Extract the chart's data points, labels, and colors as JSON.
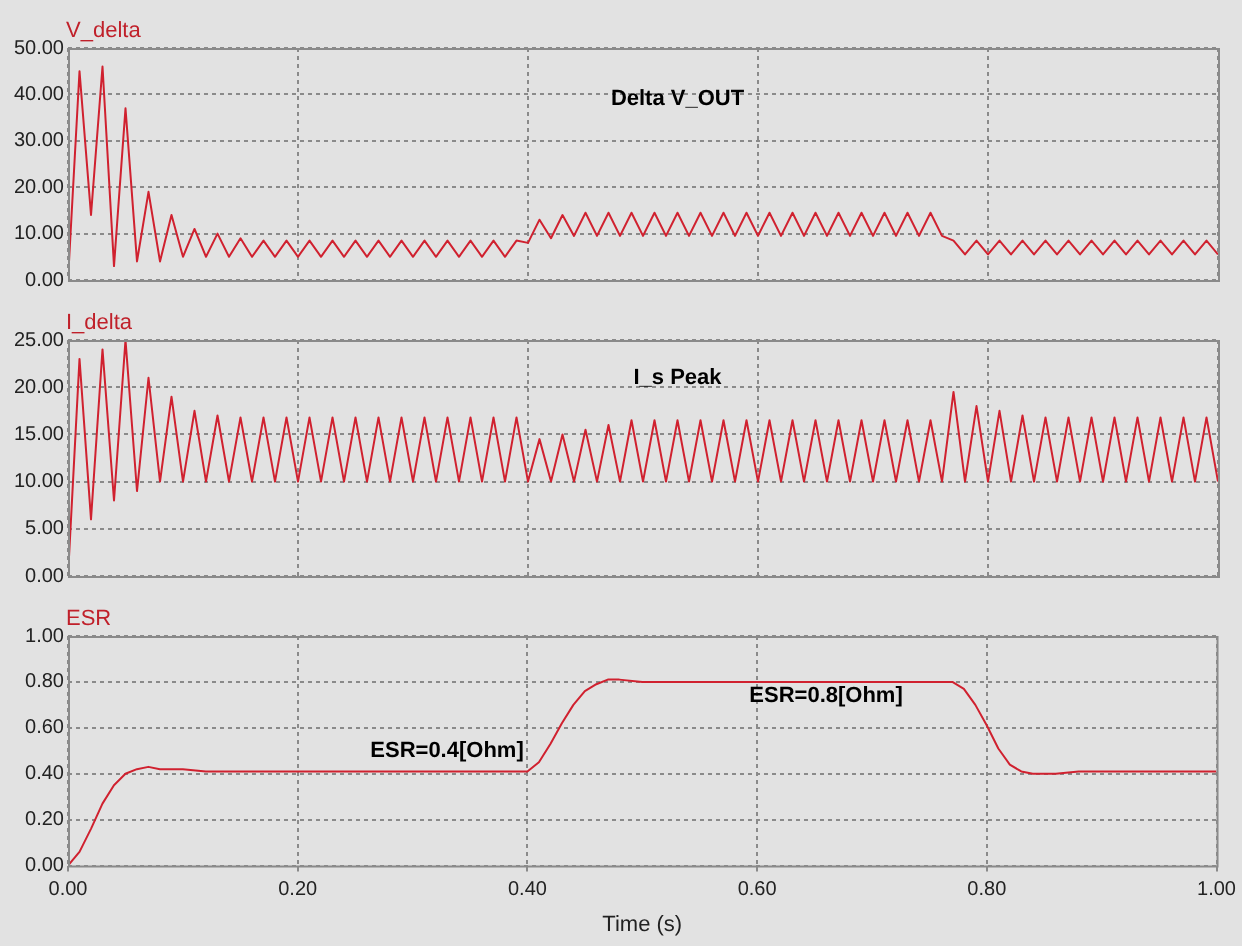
{
  "chart_data": [
    {
      "type": "line",
      "ylabel": "V_delta",
      "annotations": [
        "Delta V_OUT"
      ],
      "grid": true,
      "marker": "none",
      "tick_labels": "y",
      "xlim": [
        0,
        1
      ],
      "xticks": [
        0,
        0.2,
        0.4,
        0.6,
        0.8,
        1
      ],
      "ylim": [
        0,
        50
      ],
      "yticks": [
        {
          "value": 0,
          "label": "0.00"
        },
        {
          "value": 10,
          "label": "10.00"
        },
        {
          "value": 20,
          "label": "20.00"
        },
        {
          "value": 30,
          "label": "30.00"
        },
        {
          "value": 40,
          "label": "40.00"
        },
        {
          "value": 50,
          "label": "50.00"
        }
      ],
      "x": [
        0,
        0.01,
        0.02,
        0.03,
        0.04,
        0.05,
        0.06,
        0.07,
        0.08,
        0.09,
        0.1,
        0.11,
        0.12,
        0.13,
        0.14,
        0.15,
        0.16,
        0.17,
        0.18,
        0.19,
        0.2,
        0.21,
        0.22,
        0.23,
        0.24,
        0.25,
        0.26,
        0.27,
        0.28,
        0.29,
        0.3,
        0.31,
        0.32,
        0.33,
        0.34,
        0.35,
        0.36,
        0.37,
        0.38,
        0.39,
        0.4,
        0.41,
        0.42,
        0.43,
        0.44,
        0.45,
        0.46,
        0.47,
        0.48,
        0.49,
        0.5,
        0.51,
        0.52,
        0.53,
        0.54,
        0.55,
        0.56,
        0.57,
        0.58,
        0.59,
        0.6,
        0.61,
        0.62,
        0.63,
        0.64,
        0.65,
        0.66,
        0.67,
        0.68,
        0.69,
        0.7,
        0.71,
        0.72,
        0.73,
        0.74,
        0.75,
        0.76,
        0.77,
        0.78,
        0.79,
        0.8,
        0.81,
        0.82,
        0.83,
        0.84,
        0.85,
        0.86,
        0.87,
        0.88,
        0.89,
        0.9,
        0.91,
        0.92,
        0.93,
        0.94,
        0.95,
        0.96,
        0.97,
        0.98,
        0.99,
        1
      ],
      "series": [
        {
          "color": "#d0212f",
          "values": [
            0,
            45,
            14,
            46,
            3,
            37,
            4,
            19,
            4,
            14,
            5,
            11,
            5,
            10,
            5,
            9,
            5,
            8.5,
            5,
            8.5,
            5,
            8.5,
            5,
            8.5,
            5,
            8.5,
            5,
            8.5,
            5,
            8.5,
            5,
            8.5,
            5,
            8.5,
            5,
            8.5,
            5,
            8.5,
            5,
            8.5,
            8,
            13,
            9,
            14,
            9.5,
            14.5,
            9.5,
            14.5,
            9.5,
            14.5,
            9.5,
            14.5,
            9.5,
            14.5,
            9.5,
            14.5,
            9.5,
            14.5,
            9.5,
            14.5,
            9.5,
            14.5,
            9.5,
            14.5,
            9.5,
            14.5,
            9.5,
            14.5,
            9.5,
            14.5,
            9.5,
            14.5,
            9.5,
            14.5,
            9.5,
            14.5,
            9.5,
            8.5,
            5.5,
            8.5,
            5.5,
            8.5,
            5.5,
            8.5,
            5.5,
            8.5,
            5.5,
            8.5,
            5.5,
            8.5,
            5.5,
            8.5,
            5.5,
            8.5,
            5.5,
            8.5,
            5.5,
            8.5,
            5.5,
            8.5,
            5.5
          ]
        }
      ]
    },
    {
      "type": "line",
      "ylabel": "I_delta",
      "annotations": [
        "I_s Peak"
      ],
      "grid": true,
      "marker": "none",
      "tick_labels": "y",
      "xlim": [
        0,
        1
      ],
      "xticks": [
        0,
        0.2,
        0.4,
        0.6,
        0.8,
        1
      ],
      "ylim": [
        0,
        25
      ],
      "yticks": [
        {
          "value": 0,
          "label": "0.00"
        },
        {
          "value": 5,
          "label": "5.00"
        },
        {
          "value": 10,
          "label": "10.00"
        },
        {
          "value": 15,
          "label": "15.00"
        },
        {
          "value": 20,
          "label": "20.00"
        },
        {
          "value": 25,
          "label": "25.00"
        }
      ],
      "x": [
        0,
        0.01,
        0.02,
        0.03,
        0.04,
        0.05,
        0.06,
        0.07,
        0.08,
        0.09,
        0.1,
        0.11,
        0.12,
        0.13,
        0.14,
        0.15,
        0.16,
        0.17,
        0.18,
        0.19,
        0.2,
        0.21,
        0.22,
        0.23,
        0.24,
        0.25,
        0.26,
        0.27,
        0.28,
        0.29,
        0.3,
        0.31,
        0.32,
        0.33,
        0.34,
        0.35,
        0.36,
        0.37,
        0.38,
        0.39,
        0.4,
        0.41,
        0.42,
        0.43,
        0.44,
        0.45,
        0.46,
        0.47,
        0.48,
        0.49,
        0.5,
        0.51,
        0.52,
        0.53,
        0.54,
        0.55,
        0.56,
        0.57,
        0.58,
        0.59,
        0.6,
        0.61,
        0.62,
        0.63,
        0.64,
        0.65,
        0.66,
        0.67,
        0.68,
        0.69,
        0.7,
        0.71,
        0.72,
        0.73,
        0.74,
        0.75,
        0.76,
        0.77,
        0.78,
        0.79,
        0.8,
        0.81,
        0.82,
        0.83,
        0.84,
        0.85,
        0.86,
        0.87,
        0.88,
        0.89,
        0.9,
        0.91,
        0.92,
        0.93,
        0.94,
        0.95,
        0.96,
        0.97,
        0.98,
        0.99,
        1
      ],
      "series": [
        {
          "color": "#d0212f",
          "values": [
            0,
            23,
            6,
            24,
            8,
            25,
            9,
            21,
            10,
            19,
            10,
            17.5,
            10,
            17,
            10,
            16.8,
            10,
            16.8,
            10,
            16.8,
            10,
            16.8,
            10,
            16.8,
            10,
            16.8,
            10,
            16.8,
            10,
            16.8,
            10,
            16.8,
            10,
            16.8,
            10,
            16.8,
            10,
            16.8,
            10,
            16.8,
            10,
            14.5,
            10,
            15,
            10,
            15.5,
            10,
            16,
            10,
            16.5,
            10,
            16.5,
            10,
            16.5,
            10,
            16.5,
            10,
            16.5,
            10,
            16.5,
            10,
            16.5,
            10,
            16.5,
            10,
            16.5,
            10,
            16.5,
            10,
            16.5,
            10,
            16.5,
            10,
            16.5,
            10,
            16.5,
            10,
            19.5,
            10,
            18,
            10,
            17.5,
            10,
            17,
            10,
            16.8,
            10,
            16.8,
            10,
            16.8,
            10,
            16.8,
            10,
            16.8,
            10,
            16.8,
            10,
            16.8,
            10,
            16.8,
            10
          ]
        }
      ]
    },
    {
      "type": "line",
      "ylabel": "ESR",
      "xlabel": "Time (s)",
      "grid": true,
      "marker": "none",
      "annotations": [
        "ESR=0.4[Ohm]",
        "ESR=0.8[Ohm]"
      ],
      "xlim": [
        0,
        1
      ],
      "xticks": [
        {
          "value": 0,
          "label": "0.00"
        },
        {
          "value": 0.2,
          "label": "0.20"
        },
        {
          "value": 0.4,
          "label": "0.40"
        },
        {
          "value": 0.6,
          "label": "0.60"
        },
        {
          "value": 0.8,
          "label": "0.80"
        },
        {
          "value": 1,
          "label": "1.00"
        }
      ],
      "ylim": [
        0,
        1
      ],
      "yticks": [
        {
          "value": 0,
          "label": "0.00"
        },
        {
          "value": 0.2,
          "label": "0.20"
        },
        {
          "value": 0.4,
          "label": "0.40"
        },
        {
          "value": 0.6,
          "label": "0.60"
        },
        {
          "value": 0.8,
          "label": "0.80"
        },
        {
          "value": 1,
          "label": "1.00"
        }
      ],
      "x": [
        0,
        0.01,
        0.02,
        0.03,
        0.04,
        0.05,
        0.06,
        0.07,
        0.08,
        0.1,
        0.12,
        0.2,
        0.3,
        0.4,
        0.41,
        0.42,
        0.43,
        0.44,
        0.45,
        0.46,
        0.47,
        0.48,
        0.5,
        0.6,
        0.7,
        0.77,
        0.78,
        0.79,
        0.8,
        0.81,
        0.82,
        0.83,
        0.84,
        0.86,
        0.88,
        1
      ],
      "series": [
        {
          "color": "#d0212f",
          "values": [
            0,
            0.06,
            0.16,
            0.27,
            0.35,
            0.4,
            0.42,
            0.43,
            0.42,
            0.42,
            0.41,
            0.41,
            0.41,
            0.41,
            0.45,
            0.53,
            0.62,
            0.7,
            0.76,
            0.79,
            0.81,
            0.81,
            0.8,
            0.8,
            0.8,
            0.8,
            0.77,
            0.7,
            0.61,
            0.51,
            0.44,
            0.41,
            0.4,
            0.4,
            0.41,
            0.41
          ]
        }
      ]
    }
  ]
}
